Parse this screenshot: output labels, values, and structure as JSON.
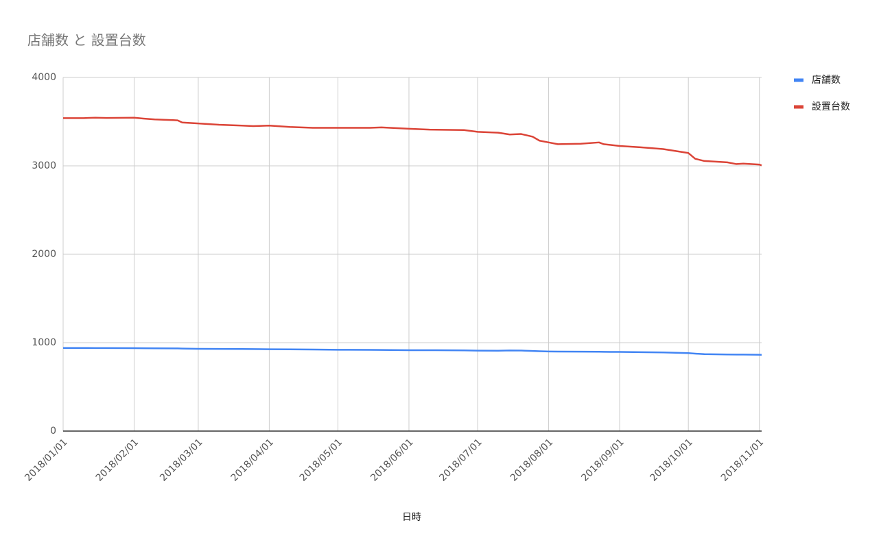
{
  "chart_data": {
    "type": "line",
    "title": "店舗数 と 設置台数",
    "x_label": "日時",
    "x": [
      "2018/01/01",
      "2018/01/10",
      "2018/01/15",
      "2018/01/20",
      "2018/02/01",
      "2018/02/05",
      "2018/02/10",
      "2018/02/20",
      "2018/02/22",
      "2018/03/01",
      "2018/03/10",
      "2018/03/20",
      "2018/03/25",
      "2018/04/01",
      "2018/04/10",
      "2018/04/20",
      "2018/05/01",
      "2018/05/15",
      "2018/05/20",
      "2018/06/01",
      "2018/06/10",
      "2018/06/25",
      "2018/07/01",
      "2018/07/10",
      "2018/07/15",
      "2018/07/20",
      "2018/07/25",
      "2018/07/28",
      "2018/08/01",
      "2018/08/05",
      "2018/08/15",
      "2018/08/23",
      "2018/08/25",
      "2018/09/01",
      "2018/09/10",
      "2018/09/20",
      "2018/10/01",
      "2018/10/04",
      "2018/10/08",
      "2018/10/18",
      "2018/10/22",
      "2018/10/25",
      "2018/11/01",
      "2018/11/02"
    ],
    "series": [
      {
        "name": "店舗数",
        "color": "#4285f4",
        "values": [
          940,
          940,
          939,
          939,
          938,
          937,
          936,
          935,
          933,
          930,
          929,
          928,
          927,
          925,
          924,
          922,
          920,
          919,
          918,
          915,
          915,
          913,
          910,
          909,
          912,
          911,
          906,
          903,
          900,
          899,
          898,
          897,
          896,
          895,
          892,
          890,
          882,
          876,
          870,
          866,
          865,
          865,
          863,
          862
        ]
      },
      {
        "name": "設置台数",
        "color": "#db4437",
        "values": [
          3540,
          3540,
          3545,
          3542,
          3545,
          3535,
          3525,
          3515,
          3490,
          3480,
          3465,
          3455,
          3450,
          3455,
          3440,
          3430,
          3430,
          3430,
          3435,
          3420,
          3410,
          3405,
          3385,
          3375,
          3355,
          3360,
          3330,
          3285,
          3265,
          3245,
          3250,
          3265,
          3245,
          3225,
          3210,
          3190,
          3145,
          3080,
          3055,
          3040,
          3020,
          3025,
          3015,
          3005
        ]
      }
    ],
    "xlim": [
      "2018/01/01",
      "2018/11/02"
    ],
    "xticks": [
      "2018/01/01",
      "2018/02/01",
      "2018/03/01",
      "2018/04/01",
      "2018/05/01",
      "2018/06/01",
      "2018/07/01",
      "2018/08/01",
      "2018/09/01",
      "2018/10/01",
      "2018/11/01"
    ],
    "ylim": [
      0,
      4000
    ],
    "yticks": [
      0,
      1000,
      2000,
      3000,
      4000
    ],
    "grid": true,
    "legend": "right"
  }
}
